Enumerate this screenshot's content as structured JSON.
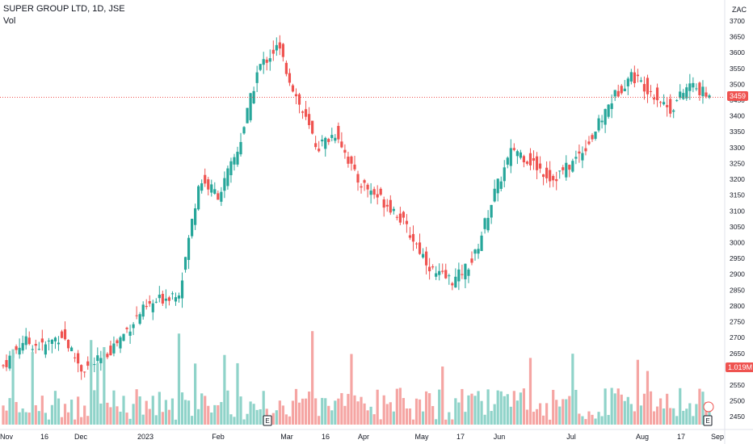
{
  "header": {
    "symbol_line": "SUPER GROUP LTD, 1D, JSE",
    "volume_label": "Vol",
    "currency": "ZAC"
  },
  "price_badge": "3459",
  "volume_badge": "1.019M",
  "earnings_marker": "E",
  "colors": {
    "up": "#26a69a",
    "down": "#ef5350",
    "up_vol": "#8fd3c9",
    "down_vol": "#f5a5a3",
    "axis_text": "#131722",
    "grid": "#f0f3fa"
  },
  "chart_data": {
    "type": "candlestick",
    "title": "SUPER GROUP LTD, 1D, JSE",
    "ylim": [
      2425,
      3710
    ],
    "y_ticks": [
      2450,
      2500,
      2550,
      2600,
      2650,
      2700,
      2750,
      2800,
      2850,
      2900,
      2950,
      3000,
      3050,
      3100,
      3150,
      3200,
      3250,
      3300,
      3350,
      3400,
      3450,
      3500,
      3550,
      3600,
      3650,
      3700
    ],
    "x_labels": [
      "Nov",
      "16",
      "Dec",
      "2023",
      "Feb",
      "Mar",
      "16",
      "Apr",
      "May",
      "17",
      "Jun",
      "Jul",
      "Aug",
      "17",
      "Sep"
    ],
    "last_close": 3459,
    "close_path": [
      [
        "Nov",
        2610
      ],
      [
        "Nov",
        2690
      ],
      [
        "16",
        2670
      ],
      [
        "16",
        2710
      ],
      [
        "Dec",
        2600
      ],
      [
        "Dec",
        2630
      ],
      [
        "2023",
        2700
      ],
      [
        "2023",
        2780
      ],
      [
        "2023",
        2820
      ],
      [
        "Feb",
        2850
      ],
      [
        "Feb",
        3200
      ],
      [
        "Feb",
        3150
      ],
      [
        "Mar",
        3300
      ],
      [
        "Mar",
        3550
      ],
      [
        "Mar",
        3620
      ],
      [
        "16",
        3450
      ],
      [
        "16",
        3300
      ],
      [
        "Apr",
        3350
      ],
      [
        "Apr",
        3200
      ],
      [
        "Apr",
        3150
      ],
      [
        "May",
        3100
      ],
      [
        "May",
        3000
      ],
      [
        "17",
        2900
      ],
      [
        "17",
        2880
      ],
      [
        "Jun",
        2950
      ],
      [
        "Jun",
        3150
      ],
      [
        "Jun",
        3300
      ],
      [
        "Jun",
        3250
      ],
      [
        "Jul",
        3200
      ],
      [
        "Jul",
        3250
      ],
      [
        "Jul",
        3330
      ],
      [
        "Aug",
        3450
      ],
      [
        "Aug",
        3530
      ],
      [
        "Aug",
        3480
      ],
      [
        "17",
        3420
      ],
      [
        "17",
        3500
      ],
      [
        "Sep",
        3459
      ]
    ],
    "volume_series": {
      "name": "Vol",
      "last": "1.019M"
    }
  }
}
